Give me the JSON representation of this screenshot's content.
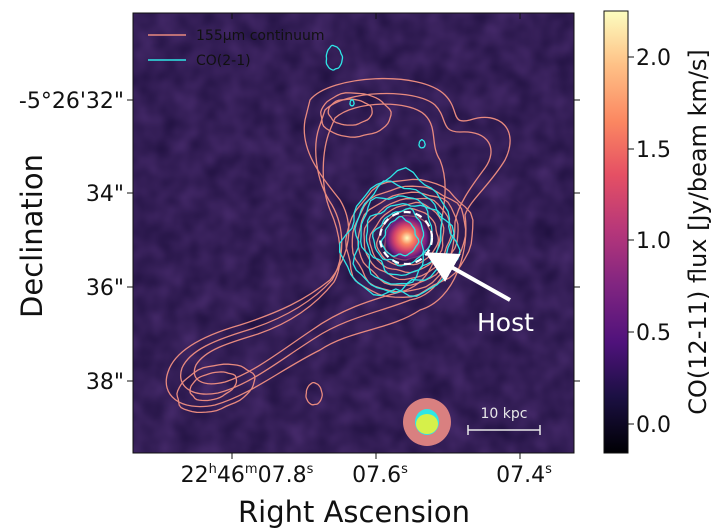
{
  "figure": {
    "xlabel": "Right Ascension",
    "ylabel": "Declination",
    "colorbar_label": "CO(12-11) flux [Jy/beam km/s]",
    "annotation": "Host",
    "scalebar_label": "10 kpc"
  },
  "legend": [
    {
      "label": "155μm continuum",
      "color": "#e88a7f"
    },
    {
      "label": "CO(2-1)",
      "color": "#2ee6e6"
    }
  ],
  "x_ticks": [
    {
      "main": "22",
      "s1": "h",
      "m": "46",
      "s2": "m",
      "rest": "07.8",
      "s3": "s"
    },
    {
      "main": "07.6",
      "s3": "s"
    },
    {
      "main": "07.4",
      "s3": "s"
    }
  ],
  "y_ticks": [
    "-5°26'32\"",
    "34\"",
    "36\"",
    "38\""
  ],
  "colorbar_ticks": [
    "2.0",
    "1.5",
    "1.0",
    "0.5",
    "0.0"
  ],
  "colors": {
    "background": "#1d0f3d",
    "continuum": "#e88a7f",
    "co21": "#2ee6e6",
    "annotation": "#ffffff"
  }
}
